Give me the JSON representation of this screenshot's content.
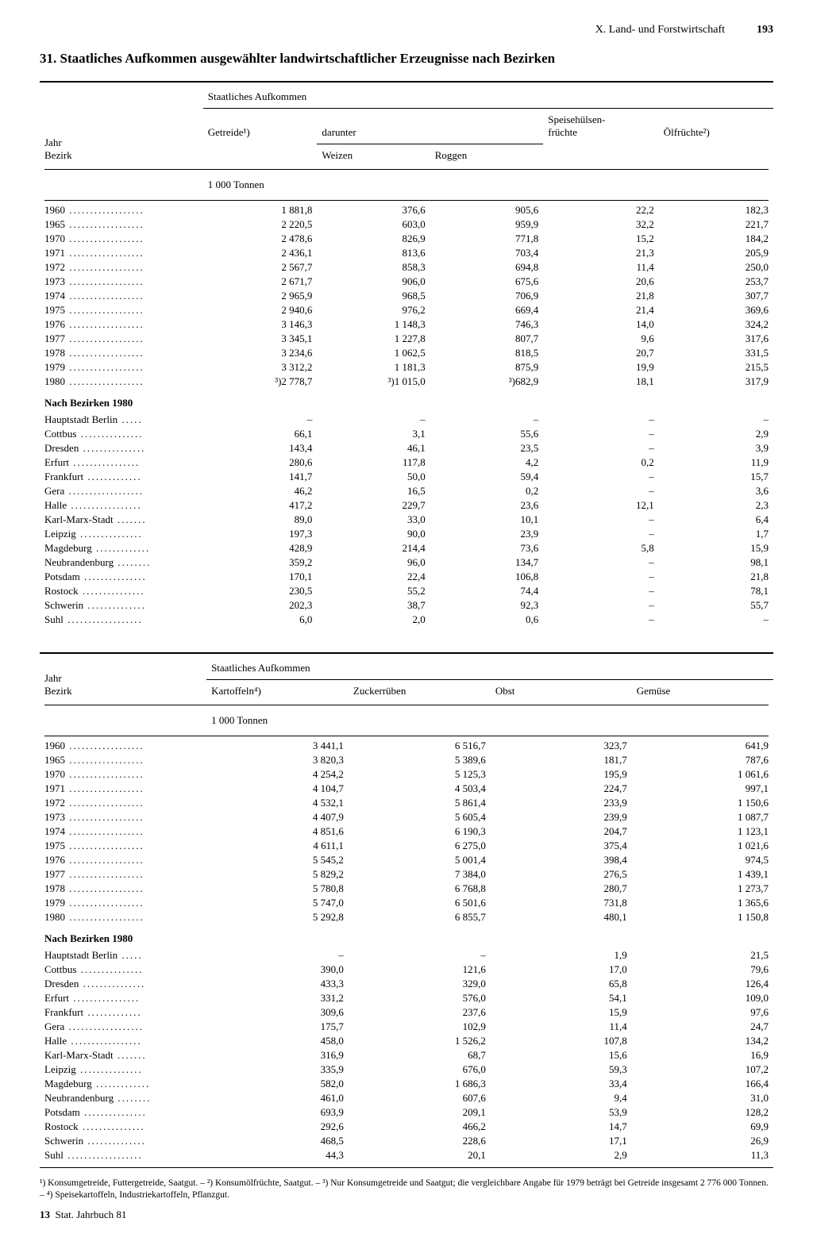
{
  "header": {
    "section": "X. Land- und Forstwirtschaft",
    "page": "193"
  },
  "title": "31. Staatliches Aufkommen ausgewählter landwirtschaftlicher Erzeugnisse nach Bezirken",
  "table1": {
    "stub_header": "Jahr\nBezirk",
    "span_header": "Staatliches Aufkommen",
    "columns": [
      "Getreide¹)",
      "darunter",
      "",
      "Speisehülsen-\nfrüchte",
      "Ölfrüchte²)"
    ],
    "sub_columns": [
      "",
      "Weizen",
      "Roggen",
      "",
      ""
    ],
    "unit": "1 000 Tonnen",
    "year_rows": [
      {
        "label": "1960",
        "vals": [
          "1 881,8",
          "376,6",
          "905,6",
          "22,2",
          "182,3"
        ]
      },
      {
        "label": "1965",
        "vals": [
          "2 220,5",
          "603,0",
          "959,9",
          "32,2",
          "221,7"
        ]
      },
      {
        "label": "1970",
        "vals": [
          "2 478,6",
          "826,9",
          "771,8",
          "15,2",
          "184,2"
        ]
      },
      {
        "label": "1971",
        "vals": [
          "2 436,1",
          "813,6",
          "703,4",
          "21,3",
          "205,9"
        ]
      },
      {
        "label": "1972",
        "vals": [
          "2 567,7",
          "858,3",
          "694,8",
          "11,4",
          "250,0"
        ]
      },
      {
        "label": "1973",
        "vals": [
          "2 671,7",
          "906,0",
          "675,6",
          "20,6",
          "253,7"
        ]
      },
      {
        "label": "1974",
        "vals": [
          "2 965,9",
          "968,5",
          "706,9",
          "21,8",
          "307,7"
        ]
      },
      {
        "label": "1975",
        "vals": [
          "2 940,6",
          "976,2",
          "669,4",
          "21,4",
          "369,6"
        ]
      },
      {
        "label": "1976",
        "vals": [
          "3 146,3",
          "1 148,3",
          "746,3",
          "14,0",
          "324,2"
        ]
      },
      {
        "label": "1977",
        "vals": [
          "3 345,1",
          "1 227,8",
          "807,7",
          "9,6",
          "317,6"
        ]
      },
      {
        "label": "1978",
        "vals": [
          "3 234,6",
          "1 062,5",
          "818,5",
          "20,7",
          "331,5"
        ]
      },
      {
        "label": "1979",
        "vals": [
          "3 312,2",
          "1 181,3",
          "875,9",
          "19,9",
          "215,5"
        ]
      },
      {
        "label": "1980",
        "vals": [
          "³)2 778,7",
          "³)1 015,0",
          "³)682,9",
          "18,1",
          "317,9"
        ]
      }
    ],
    "subheading": "Nach Bezirken 1980",
    "district_rows": [
      {
        "label": "Hauptstadt Berlin",
        "vals": [
          "–",
          "–",
          "–",
          "–",
          "–"
        ]
      },
      {
        "label": "Cottbus",
        "vals": [
          "66,1",
          "3,1",
          "55,6",
          "–",
          "2,9"
        ]
      },
      {
        "label": "Dresden",
        "vals": [
          "143,4",
          "46,1",
          "23,5",
          "–",
          "3,9"
        ]
      },
      {
        "label": "Erfurt",
        "vals": [
          "280,6",
          "117,8",
          "4,2",
          "0,2",
          "11,9"
        ]
      },
      {
        "label": "Frankfurt",
        "vals": [
          "141,7",
          "50,0",
          "59,4",
          "–",
          "15,7"
        ]
      },
      {
        "label": "Gera",
        "vals": [
          "46,2",
          "16,5",
          "0,2",
          "–",
          "3,6"
        ]
      },
      {
        "label": "Halle",
        "vals": [
          "417,2",
          "229,7",
          "23,6",
          "12,1",
          "2,3"
        ]
      },
      {
        "label": "Karl-Marx-Stadt",
        "vals": [
          "89,0",
          "33,0",
          "10,1",
          "–",
          "6,4"
        ]
      },
      {
        "label": "Leipzig",
        "vals": [
          "197,3",
          "90,0",
          "23,9",
          "–",
          "1,7"
        ]
      },
      {
        "label": "Magdeburg",
        "vals": [
          "428,9",
          "214,4",
          "73,6",
          "5,8",
          "15,9"
        ]
      },
      {
        "label": "Neubrandenburg",
        "vals": [
          "359,2",
          "96,0",
          "134,7",
          "–",
          "98,1"
        ]
      },
      {
        "label": "Potsdam",
        "vals": [
          "170,1",
          "22,4",
          "106,8",
          "–",
          "21,8"
        ]
      },
      {
        "label": "Rostock",
        "vals": [
          "230,5",
          "55,2",
          "74,4",
          "–",
          "78,1"
        ]
      },
      {
        "label": "Schwerin",
        "vals": [
          "202,3",
          "38,7",
          "92,3",
          "–",
          "55,7"
        ]
      },
      {
        "label": "Suhl",
        "vals": [
          "6,0",
          "2,0",
          "0,6",
          "–",
          "–"
        ]
      }
    ]
  },
  "table2": {
    "stub_header": "Jahr\nBezirk",
    "span_header": "Staatliches Aufkommen",
    "columns": [
      "Kartoffeln⁴)",
      "Zuckerrüben",
      "Obst",
      "Gemüse"
    ],
    "unit": "1 000 Tonnen",
    "year_rows": [
      {
        "label": "1960",
        "vals": [
          "3 441,1",
          "6 516,7",
          "323,7",
          "641,9"
        ]
      },
      {
        "label": "1965",
        "vals": [
          "3 820,3",
          "5 389,6",
          "181,7",
          "787,6"
        ]
      },
      {
        "label": "1970",
        "vals": [
          "4 254,2",
          "5 125,3",
          "195,9",
          "1 061,6"
        ]
      },
      {
        "label": "1971",
        "vals": [
          "4 104,7",
          "4 503,4",
          "224,7",
          "997,1"
        ]
      },
      {
        "label": "1972",
        "vals": [
          "4 532,1",
          "5 861,4",
          "233,9",
          "1 150,6"
        ]
      },
      {
        "label": "1973",
        "vals": [
          "4 407,9",
          "5 605,4",
          "239,9",
          "1 087,7"
        ]
      },
      {
        "label": "1974",
        "vals": [
          "4 851,6",
          "6 190,3",
          "204,7",
          "1 123,1"
        ]
      },
      {
        "label": "1975",
        "vals": [
          "4 611,1",
          "6 275,0",
          "375,4",
          "1 021,6"
        ]
      },
      {
        "label": "1976",
        "vals": [
          "5 545,2",
          "5 001,4",
          "398,4",
          "974,5"
        ]
      },
      {
        "label": "1977",
        "vals": [
          "5 829,2",
          "7 384,0",
          "276,5",
          "1 439,1"
        ]
      },
      {
        "label": "1978",
        "vals": [
          "5 780,8",
          "6 768,8",
          "280,7",
          "1 273,7"
        ]
      },
      {
        "label": "1979",
        "vals": [
          "5 747,0",
          "6 501,6",
          "731,8",
          "1 365,6"
        ]
      },
      {
        "label": "1980",
        "vals": [
          "5 292,8",
          "6 855,7",
          "480,1",
          "1 150,8"
        ]
      }
    ],
    "subheading": "Nach Bezirken 1980",
    "district_rows": [
      {
        "label": "Hauptstadt Berlin",
        "vals": [
          "–",
          "–",
          "1,9",
          "21,5"
        ]
      },
      {
        "label": "Cottbus",
        "vals": [
          "390,0",
          "121,6",
          "17,0",
          "79,6"
        ]
      },
      {
        "label": "Dresden",
        "vals": [
          "433,3",
          "329,0",
          "65,8",
          "126,4"
        ]
      },
      {
        "label": "Erfurt",
        "vals": [
          "331,2",
          "576,0",
          "54,1",
          "109,0"
        ]
      },
      {
        "label": "Frankfurt",
        "vals": [
          "309,6",
          "237,6",
          "15,9",
          "97,6"
        ]
      },
      {
        "label": "Gera",
        "vals": [
          "175,7",
          "102,9",
          "11,4",
          "24,7"
        ]
      },
      {
        "label": "Halle",
        "vals": [
          "458,0",
          "1 526,2",
          "107,8",
          "134,2"
        ]
      },
      {
        "label": "Karl-Marx-Stadt",
        "vals": [
          "316,9",
          "68,7",
          "15,6",
          "16,9"
        ]
      },
      {
        "label": "Leipzig",
        "vals": [
          "335,9",
          "676,0",
          "59,3",
          "107,2"
        ]
      },
      {
        "label": "Magdeburg",
        "vals": [
          "582,0",
          "1 686,3",
          "33,4",
          "166,4"
        ]
      },
      {
        "label": "Neubrandenburg",
        "vals": [
          "461,0",
          "607,6",
          "9,4",
          "31,0"
        ]
      },
      {
        "label": "Potsdam",
        "vals": [
          "693,9",
          "209,1",
          "53,9",
          "128,2"
        ]
      },
      {
        "label": "Rostock",
        "vals": [
          "292,6",
          "466,2",
          "14,7",
          "69,9"
        ]
      },
      {
        "label": "Schwerin",
        "vals": [
          "468,5",
          "228,6",
          "17,1",
          "26,9"
        ]
      },
      {
        "label": "Suhl",
        "vals": [
          "44,3",
          "20,1",
          "2,9",
          "11,3"
        ]
      }
    ]
  },
  "footnotes": "¹) Konsumgetreide, Futtergetreide, Saatgut. – ²) Konsumölfrüchte, Saatgut. – ³) Nur Konsumgetreide und Saatgut; die vergleichbare Angabe für 1979 beträgt bei Getreide insgesamt 2 776 000 Tonnen. – ⁴) Speisekartoffeln, Industriekartoffeln, Pflanzgut.",
  "footer": {
    "num": "13",
    "text": "Stat. Jahrbuch 81"
  }
}
